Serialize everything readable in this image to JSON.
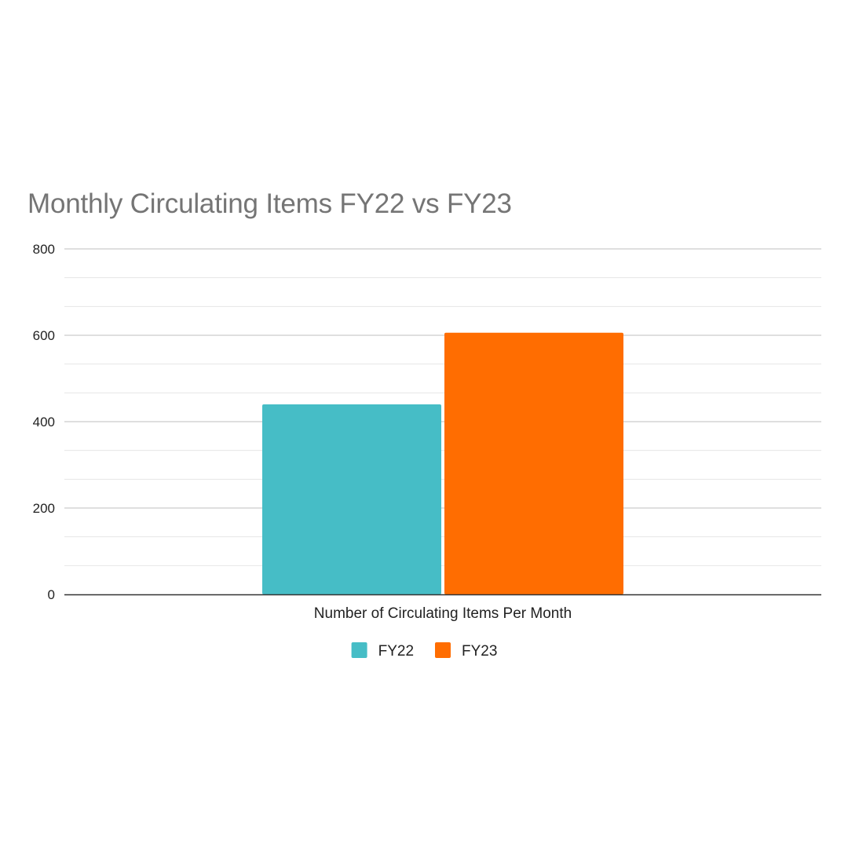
{
  "chart_data": {
    "type": "bar",
    "title": "Monthly Circulating Items FY22 vs FY23",
    "categories": [
      "Number of Circulating Items Per Month"
    ],
    "series": [
      {
        "name": "FY22",
        "values": [
          440
        ],
        "color": "#46BDC6"
      },
      {
        "name": "FY23",
        "values": [
          606
        ],
        "color": "#FF6D01"
      }
    ],
    "xlabel": "",
    "ylabel": "",
    "ylim": [
      0,
      800
    ],
    "yticks": [
      0,
      200,
      400,
      600,
      800
    ],
    "ytick_labels": [
      "0",
      "200",
      "400",
      "600",
      "800"
    ],
    "minor_gridlines": true,
    "grid": true,
    "legend_position": "bottom"
  }
}
